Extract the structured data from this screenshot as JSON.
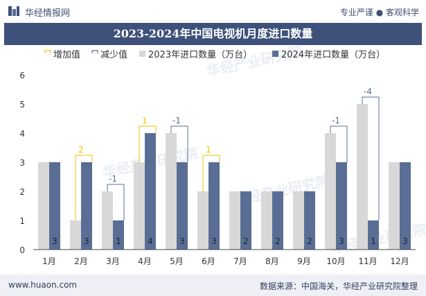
{
  "header": {
    "brand": "华经情报网",
    "slogan": "专业严谨 ● 客观科学"
  },
  "footer": {
    "url": "www.huaon.com",
    "source": "数据来源：中国海关，华经产业研究院整理"
  },
  "watermark": "华经产业研究院",
  "colors": {
    "bar2023": "#d8d8d8",
    "bar2024": "#5a6e95",
    "increase": "#f2c200",
    "decrease": "#5a6e95",
    "title_bg": "#3d517a"
  },
  "chart_data": {
    "type": "bar",
    "title": "2023-2024年中国电视机月度进口数量",
    "categories": [
      "1月",
      "2月",
      "3月",
      "4月",
      "5月",
      "6月",
      "7月",
      "8月",
      "9月",
      "10月",
      "11月",
      "12月"
    ],
    "series": [
      {
        "name": "2023年进口数量（万台）",
        "values": [
          3,
          1,
          2,
          3,
          4,
          2,
          2,
          2,
          2,
          4,
          5,
          3
        ]
      },
      {
        "name": "2024年进口数量（万台）",
        "values": [
          3,
          3,
          1,
          4,
          3,
          3,
          2,
          2,
          2,
          3,
          1,
          3
        ]
      }
    ],
    "change_legend": {
      "increase": "增加值",
      "decrease": "减少值"
    },
    "changes": [
      null,
      2,
      -1,
      1,
      -1,
      1,
      null,
      null,
      null,
      -1,
      -4,
      null
    ],
    "change_labels": [
      "",
      "2",
      "-1",
      "1",
      "-1",
      "1",
      "",
      "",
      "",
      "-1",
      "-4",
      ""
    ],
    "labels_2024": [
      "3",
      "3",
      "1",
      "4",
      "3",
      "3",
      "2",
      "2",
      "2",
      "3",
      "1",
      "3"
    ],
    "ylim": [
      0,
      6
    ],
    "yticks": [
      "0",
      "1",
      "2",
      "3",
      "4",
      "5",
      "6"
    ],
    "legend_position": "top",
    "grid": false
  }
}
